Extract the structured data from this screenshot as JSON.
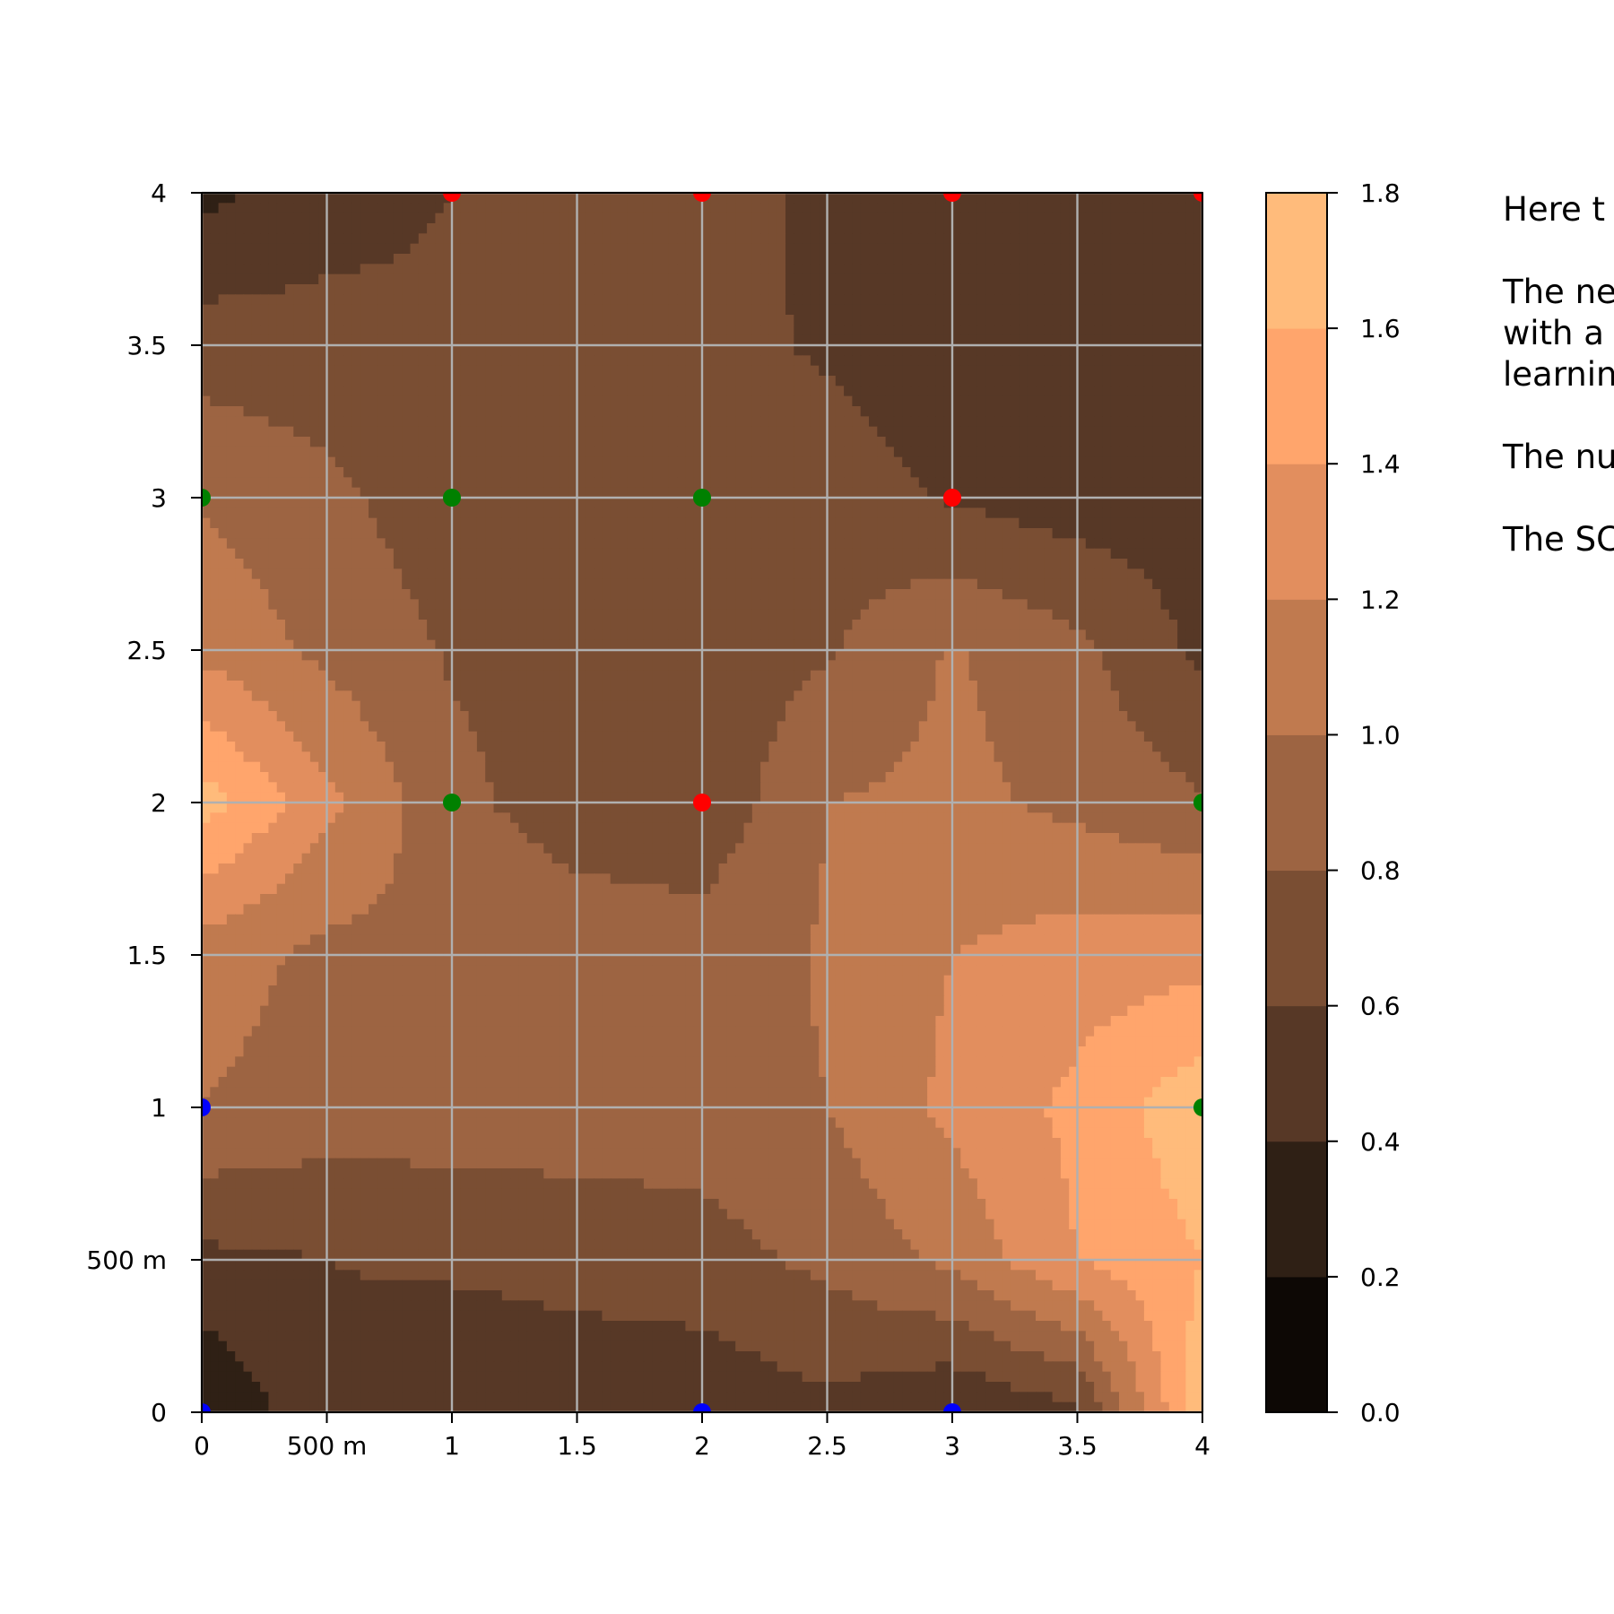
{
  "chart_data": {
    "type": "heatmap",
    "subtype": "filled-contour",
    "title": "",
    "xlabel": "",
    "ylabel": "",
    "xlim": [
      0,
      4
    ],
    "ylim": [
      0,
      4
    ],
    "grid": true,
    "x_ticks": [
      {
        "value": 0,
        "label": "0"
      },
      {
        "value": 0.5,
        "label": "500 m"
      },
      {
        "value": 1,
        "label": "1"
      },
      {
        "value": 1.5,
        "label": "1.5"
      },
      {
        "value": 2,
        "label": "2"
      },
      {
        "value": 2.5,
        "label": "2.5"
      },
      {
        "value": 3,
        "label": "3"
      },
      {
        "value": 3.5,
        "label": "3.5"
      },
      {
        "value": 4,
        "label": "4"
      }
    ],
    "y_ticks": [
      {
        "value": 0,
        "label": "0"
      },
      {
        "value": 0.5,
        "label": "500 m"
      },
      {
        "value": 1,
        "label": "1"
      },
      {
        "value": 1.5,
        "label": "1.5"
      },
      {
        "value": 2,
        "label": "2"
      },
      {
        "value": 2.5,
        "label": "2.5"
      },
      {
        "value": 3,
        "label": "3"
      },
      {
        "value": 3.5,
        "label": "3.5"
      },
      {
        "value": 4,
        "label": "4"
      }
    ],
    "colorbar": {
      "levels": [
        0.0,
        0.2,
        0.4,
        0.6,
        0.8,
        1.0,
        1.2,
        1.4,
        1.6,
        1.8
      ],
      "tick_labels": [
        "0.0",
        "0.2",
        "0.4",
        "0.6",
        "0.8",
        "1.0",
        "1.2",
        "1.4",
        "1.6",
        "1.8"
      ],
      "colors": [
        "#0d0805",
        "#2f2015",
        "#573826",
        "#7a4e33",
        "#9d6442",
        "#c07a4f",
        "#e28e5e",
        "#ffa56c",
        "#ffbb7b"
      ]
    },
    "grid_values": [
      [
        0.2,
        0.55,
        0.4,
        0.45,
        0.45,
        0.55,
        0.4,
        0.55,
        1.75
      ],
      [
        0.55,
        0.6,
        0.64,
        0.68,
        0.72,
        0.85,
        1.05,
        1.4,
        1.6
      ],
      [
        1.0,
        0.9,
        0.9,
        0.9,
        0.9,
        1.0,
        1.25,
        1.45,
        1.75
      ],
      [
        1.1,
        0.95,
        0.95,
        0.92,
        0.9,
        1.02,
        1.2,
        1.3,
        1.32
      ],
      [
        1.7,
        1.25,
        0.85,
        0.7,
        0.65,
        1.0,
        1.05,
        0.95,
        0.82
      ],
      [
        1.15,
        0.95,
        0.78,
        0.72,
        0.68,
        0.78,
        1.02,
        0.85,
        0.55
      ],
      [
        0.98,
        0.85,
        0.68,
        0.7,
        0.65,
        0.68,
        0.58,
        0.5,
        0.5
      ],
      [
        0.7,
        0.68,
        0.65,
        0.66,
        0.65,
        0.58,
        0.5,
        0.5,
        0.5
      ],
      [
        0.35,
        0.5,
        0.6,
        0.62,
        0.7,
        0.55,
        0.5,
        0.5,
        0.45
      ]
    ],
    "points": [
      {
        "x": 0,
        "y": 0,
        "color": "#0000ff"
      },
      {
        "x": 2,
        "y": 0,
        "color": "#0000ff"
      },
      {
        "x": 3,
        "y": 0,
        "color": "#0000ff"
      },
      {
        "x": 0,
        "y": 1,
        "color": "#0000ff"
      },
      {
        "x": 4,
        "y": 1,
        "color": "#008000"
      },
      {
        "x": 1,
        "y": 2,
        "color": "#008000"
      },
      {
        "x": 2,
        "y": 2,
        "color": "#ff0000"
      },
      {
        "x": 4,
        "y": 2,
        "color": "#008000"
      },
      {
        "x": 0,
        "y": 3,
        "color": "#008000"
      },
      {
        "x": 1,
        "y": 3,
        "color": "#008000"
      },
      {
        "x": 2,
        "y": 3,
        "color": "#008000"
      },
      {
        "x": 3,
        "y": 3,
        "color": "#ff0000"
      },
      {
        "x": 1,
        "y": 4,
        "color": "#ff0000"
      },
      {
        "x": 2,
        "y": 4,
        "color": "#ff0000"
      },
      {
        "x": 3,
        "y": 4,
        "color": "#ff0000"
      },
      {
        "x": 4,
        "y": 4,
        "color": "#ff0000"
      }
    ]
  },
  "side_text": [
    "Here t",
    "The ne",
    "with a",
    "learnin",
    "The nu",
    "The SC"
  ]
}
